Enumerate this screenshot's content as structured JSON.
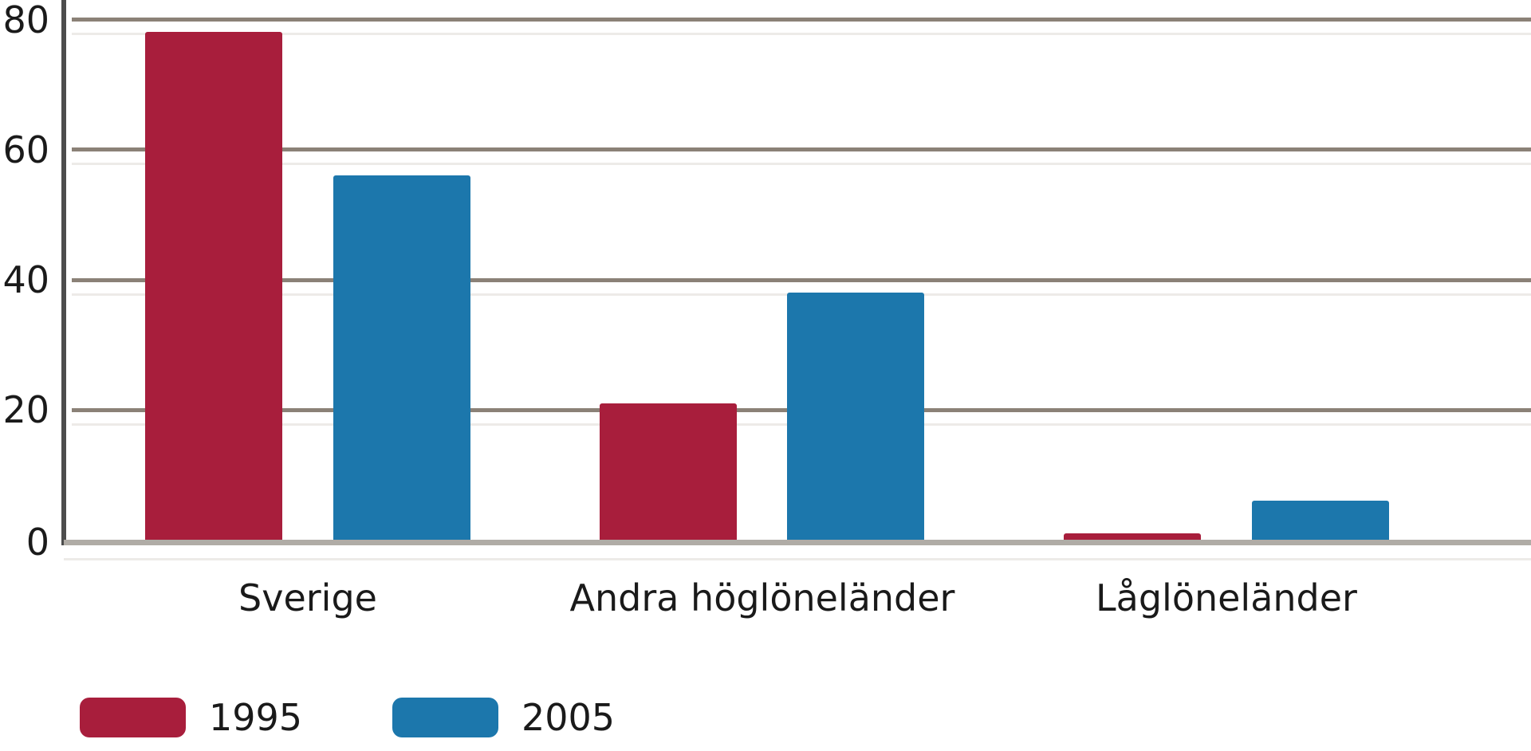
{
  "chart_data": {
    "type": "bar",
    "title": "",
    "xlabel": "",
    "ylabel": "",
    "categories": [
      "Sverige",
      "Andra höglöneländer",
      "Låglöneländer"
    ],
    "series": [
      {
        "name": "1995",
        "color": "#a81e3c",
        "values": [
          78,
          21,
          1
        ]
      },
      {
        "name": "2005",
        "color": "#1c77ac",
        "values": [
          56,
          38,
          6
        ]
      }
    ],
    "y_ticks": [
      0,
      20,
      40,
      60,
      80
    ],
    "ylim": [
      0,
      80
    ],
    "grid": true,
    "legend_position": "bottom-left"
  },
  "colors": {
    "series_1995": "#a81e3c",
    "series_2005": "#1c77ac",
    "gridline": "#8b8177",
    "axis_line": "#4d4d4d",
    "baseline": "#b0aca6",
    "text": "#1a1a1a",
    "background": "#ffffff"
  },
  "legend": {
    "items": [
      {
        "label": "1995"
      },
      {
        "label": "2005"
      }
    ]
  }
}
